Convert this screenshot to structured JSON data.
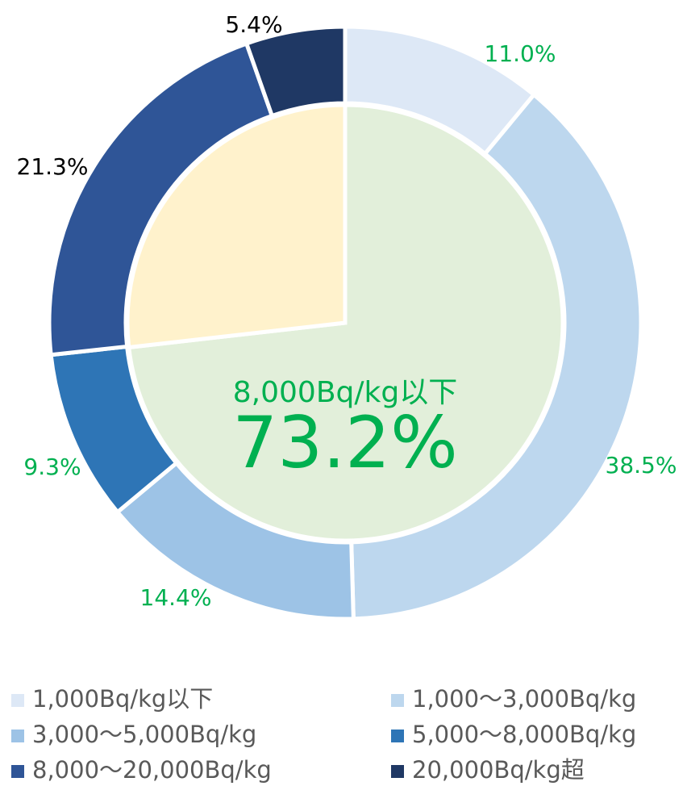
{
  "chart_data": {
    "type": "donut",
    "categories": [
      "1,000Bq/kg以下",
      "1,000～3,000Bq/kg",
      "3,000～5,000Bq/kg",
      "5,000～8,000Bq/kg",
      "8,000～20,000Bq/kg",
      "20,000Bq/kg超"
    ],
    "values": [
      11.0,
      38.5,
      14.4,
      9.3,
      21.3,
      5.4
    ],
    "value_labels": [
      "11.0%",
      "38.5%",
      "14.4%",
      "9.3%",
      "21.3%",
      "5.4%"
    ],
    "colors": [
      "#dde8f6",
      "#bdd7ee",
      "#9dc3e6",
      "#2e75b6",
      "#2f5597",
      "#1f3864"
    ],
    "label_colors": [
      "#00b050",
      "#00b050",
      "#00b050",
      "#00b050",
      "#000000",
      "#000000"
    ],
    "inner": {
      "label": "8,000Bq/kg以下",
      "values": [
        73.2,
        26.8
      ],
      "value_label": "73.2%",
      "colors": [
        "#e2efda",
        "#fff2cc"
      ],
      "label_color": "#00b050"
    },
    "legend": "bottom"
  }
}
